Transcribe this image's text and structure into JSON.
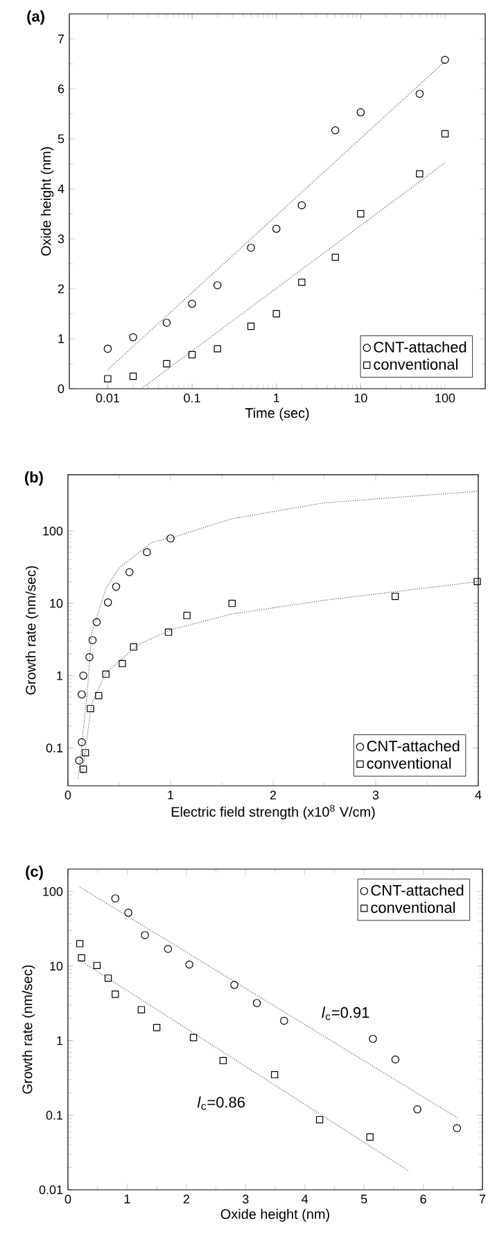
{
  "chart_data": [
    {
      "type": "scatter",
      "title": "(a)",
      "xlabel": "Time (sec)",
      "ylabel": "Oxide height (nm)",
      "log": "x",
      "xlim": [
        0.0035,
        300
      ],
      "ylim": [
        0,
        7.5
      ],
      "xticks": [
        0.01,
        0.1,
        1,
        10,
        100
      ],
      "yticks": [
        0,
        1,
        2,
        3,
        4,
        5,
        6,
        7
      ],
      "legend": "bottom right",
      "series": [
        {
          "name": "CNT-attached",
          "color": "#000000",
          "marker": "circle",
          "x": [
            0.01,
            0.02,
            0.05,
            0.1,
            0.2,
            0.5,
            1,
            2,
            5,
            10,
            50,
            100
          ],
          "values": [
            0.8,
            1.03,
            1.32,
            1.7,
            2.07,
            2.82,
            3.2,
            3.67,
            5.17,
            5.53,
            5.9,
            6.58
          ]
        },
        {
          "name": "conventional",
          "color": "#000000",
          "marker": "square",
          "x": [
            0.01,
            0.02,
            0.05,
            0.1,
            0.2,
            0.5,
            1,
            2,
            5,
            10,
            50,
            100
          ],
          "values": [
            0.2,
            0.25,
            0.5,
            0.68,
            0.8,
            1.25,
            1.5,
            2.13,
            2.63,
            3.5,
            4.3,
            5.1
          ]
        },
        {
          "type": "line",
          "color": "#555555",
          "line_style": "dotted",
          "marker": "none",
          "x": [
            0.01,
            100
          ],
          "values": [
            0.38,
            6.55
          ]
        },
        {
          "type": "line",
          "color": "#555555",
          "line_style": "dotted",
          "marker": "none",
          "x": [
            0.025,
            100
          ],
          "values": [
            0,
            4.52
          ]
        }
      ]
    },
    {
      "type": "scatter",
      "title": "(b)",
      "xlabel": "Electric field strength (x10$^{8}$ V/cm)",
      "ylabel": "Growth rate (nm/sec)",
      "log": "y",
      "xlim": [
        0,
        4
      ],
      "ylim": [
        0.03,
        600
      ],
      "xticks": [
        0,
        1,
        2,
        3,
        4
      ],
      "yticks": [
        0.1,
        1,
        10,
        100
      ],
      "legend": "bottom right",
      "series": [
        {
          "name": "CNT-attached",
          "color": "#000000",
          "marker": "circle",
          "x": [
            0.11,
            0.135,
            0.135,
            0.15,
            0.21,
            0.24,
            0.28,
            0.39,
            0.47,
            0.6,
            0.77,
            1.0
          ],
          "values": [
            0.067,
            0.12,
            0.55,
            1.0,
            1.8,
            3.1,
            5.5,
            10.3,
            17,
            27,
            51,
            79
          ]
        },
        {
          "name": "conventional",
          "color": "#000000",
          "marker": "square",
          "x": [
            0.15,
            0.17,
            0.22,
            0.3,
            0.37,
            0.53,
            0.64,
            0.98,
            1.16,
            1.6,
            3.19,
            3.99
          ],
          "values": [
            0.051,
            0.086,
            0.35,
            0.53,
            1.05,
            1.47,
            2.5,
            4.0,
            6.8,
            10,
            12.5,
            20
          ]
        },
        {
          "type": "line",
          "color": "#555555",
          "line_style": "dotted",
          "marker": "none",
          "x": [
            0.1,
            0.19,
            0.23,
            0.37,
            0.5,
            0.82,
            1.0,
            1.59,
            2.49,
            4.0
          ],
          "values": [
            0.038,
            0.62,
            3.8,
            16,
            31,
            70,
            80,
            147,
            245,
            355
          ]
        },
        {
          "type": "line",
          "color": "#555555",
          "line_style": "dotted",
          "marker": "none",
          "x": [
            0.14,
            0.23,
            0.37,
            0.69,
            1.0,
            1.59,
            2.49,
            4.0
          ],
          "values": [
            0.044,
            0.41,
            1.1,
            2.7,
            4.3,
            7.1,
            11,
            20
          ]
        }
      ]
    },
    {
      "type": "scatter",
      "title": "(c)",
      "xlabel": "Oxide height (nm)",
      "ylabel": "Growth rate (nm/sec)",
      "log": "y",
      "xlim": [
        0,
        7
      ],
      "ylim": [
        0.01,
        200
      ],
      "xticks": [
        0,
        1,
        2,
        3,
        4,
        5,
        6,
        7
      ],
      "yticks": [
        0.01,
        0.1,
        1,
        10,
        100
      ],
      "legend": "top right",
      "annotations": [
        "*l*$_{c}$=0.91",
        "*l*$_{c}$=0.86"
      ],
      "series": [
        {
          "name": "CNT-attached",
          "color": "#000000",
          "marker": "circle",
          "x": [
            0.8,
            1.02,
            1.3,
            1.69,
            2.05,
            2.81,
            3.19,
            3.65,
            5.15,
            5.53,
            5.9,
            6.57
          ],
          "values": [
            81,
            52,
            26,
            17,
            10.5,
            5.6,
            3.2,
            1.85,
            1.06,
            0.56,
            0.12,
            0.067
          ]
        },
        {
          "name": "conventional",
          "color": "#000000",
          "marker": "square",
          "x": [
            0.2,
            0.23,
            0.49,
            0.68,
            0.8,
            1.24,
            1.5,
            2.12,
            2.62,
            3.49,
            4.25,
            5.1
          ],
          "values": [
            20,
            12.9,
            10.2,
            6.9,
            4.2,
            2.6,
            1.5,
            1.1,
            0.54,
            0.35,
            0.087,
            0.051
          ]
        },
        {
          "type": "line",
          "color": "#555555",
          "line_style": "dotted",
          "marker": "none",
          "x": [
            0.2,
            6.6
          ],
          "values": [
            115,
            0.09
          ]
        },
        {
          "type": "line",
          "color": "#555555",
          "line_style": "dotted",
          "marker": "none",
          "x": [
            0.2,
            5.75
          ],
          "values": [
            12,
            0.018
          ]
        }
      ]
    }
  ]
}
